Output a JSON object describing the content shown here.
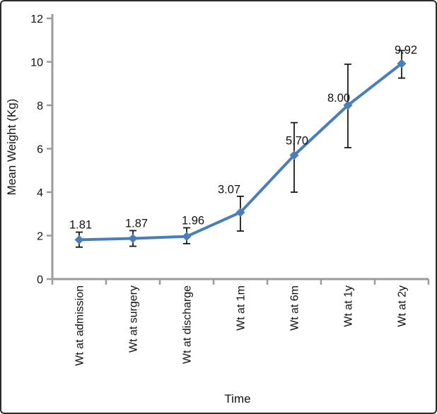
{
  "figure": {
    "background": "#ffffff",
    "border_color": "#2c2c2c"
  },
  "chart_data": {
    "type": "line",
    "title": "",
    "xlabel": "Time",
    "ylabel": "Mean Weight (Kg)",
    "categories": [
      "Wt at admission",
      "Wt at surgery",
      "Wt at discharge",
      "Wt at 1m",
      "Wt at 6m",
      "Wt at 1y",
      "Wt at 2y"
    ],
    "values": [
      1.81,
      1.87,
      1.96,
      3.07,
      5.7,
      8.0,
      9.92
    ],
    "data_labels": [
      "1.81",
      "1.87",
      "1.96",
      "3.07",
      "5.70",
      "8.00",
      "9.92"
    ],
    "error_up": [
      0.35,
      0.36,
      0.4,
      0.74,
      1.5,
      1.89,
      0.6
    ],
    "error_down": [
      0.34,
      0.36,
      0.33,
      0.86,
      1.7,
      1.95,
      0.67
    ],
    "ylim": [
      0,
      12
    ],
    "ytick_step": 2,
    "ytick_labels": [
      "0",
      "2",
      "4",
      "6",
      "8",
      "10",
      "12"
    ],
    "grid": false,
    "legend": "none",
    "marker": "diamond",
    "line_color": "#4a7ebb",
    "marker_color": "#4a7ebb",
    "error_bar_color": "#1a1a1a",
    "axis_color": "#9b9b9b",
    "label_offsets": {
      "dx": [
        2,
        5,
        9,
        -16,
        4,
        -13,
        6
      ],
      "dy": [
        -16,
        -16,
        -17,
        -27,
        -15,
        -5,
        -14
      ]
    }
  }
}
